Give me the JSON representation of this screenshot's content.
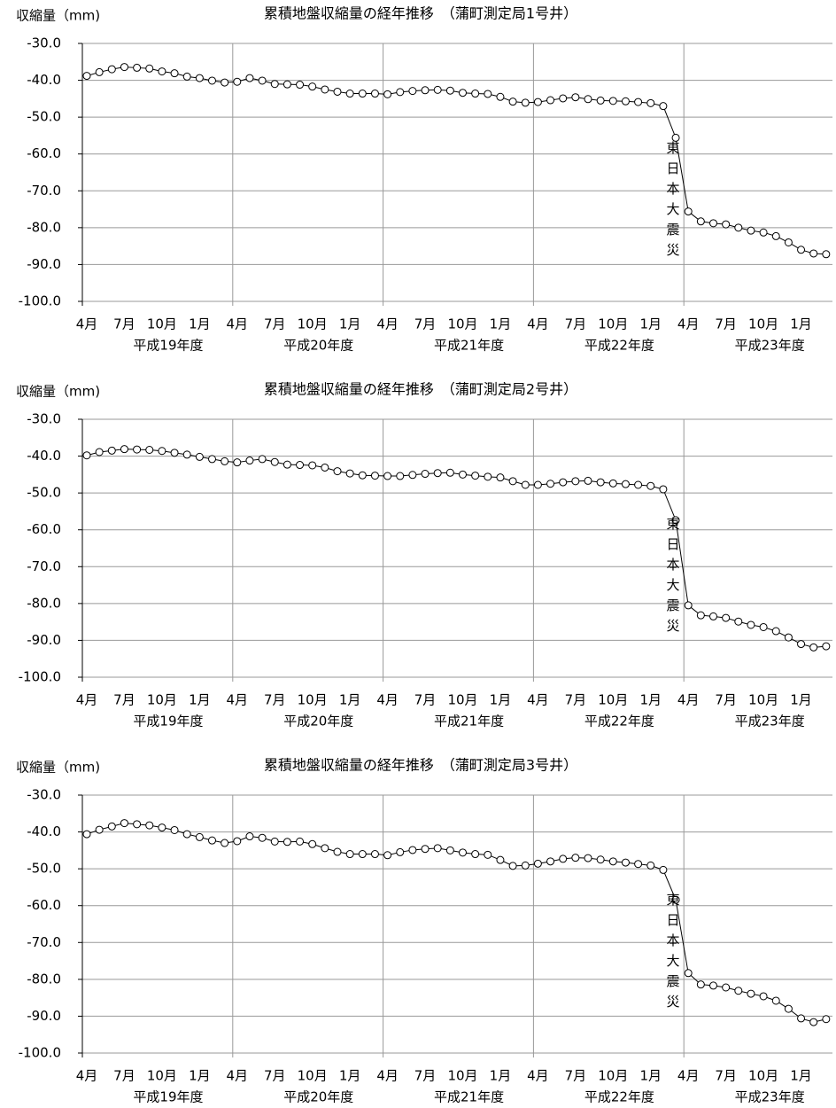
{
  "chart_data": [
    {
      "type": "line",
      "title": "累積地盤収縮量の経年推移　（蒲町測定局1号井）",
      "y_label": "収縮量（mm)",
      "categories": [
        "4月",
        null,
        null,
        "7月",
        null,
        null,
        "10月",
        null,
        null,
        "1月",
        null,
        null,
        "4月",
        null,
        null,
        "7月",
        null,
        null,
        "10月",
        null,
        null,
        "1月",
        null,
        null,
        "4月",
        null,
        null,
        "7月",
        null,
        null,
        "10月",
        null,
        null,
        "1月",
        null,
        null,
        "4月",
        null,
        null,
        "7月",
        null,
        null,
        "10月",
        null,
        null,
        "1月",
        null,
        null,
        "4月",
        null,
        null,
        "7月",
        null,
        null,
        "10月",
        null,
        null,
        "1月",
        null,
        null
      ],
      "year_labels": [
        "平成19年度",
        "平成20年度",
        "平成21年度",
        "平成22年度",
        "平成23年度"
      ],
      "annotation": "東日本大震災",
      "ylim": [
        -100,
        -30
      ],
      "yticks": [
        {
          "value": -30,
          "label": "-30.0"
        },
        {
          "value": -40,
          "label": "-40.0"
        },
        {
          "value": -50,
          "label": "-50.0"
        },
        {
          "value": -60,
          "label": "-60.0"
        },
        {
          "value": -70,
          "label": "-70.0"
        },
        {
          "value": -80,
          "label": "-80.0"
        },
        {
          "value": -90,
          "label": "-90.0"
        },
        {
          "value": -100,
          "label": "-100.0"
        }
      ],
      "grid": true,
      "series": [
        {
          "color": "#000000",
          "values": [
            -38.8,
            -37.8,
            -37.0,
            -36.4,
            -36.6,
            -36.8,
            -37.6,
            -38.1,
            -39.0,
            -39.4,
            -40.1,
            -40.6,
            -40.4,
            -39.4,
            -40.1,
            -41.0,
            -41.1,
            -41.2,
            -41.7,
            -42.5,
            -43.1,
            -43.6,
            -43.6,
            -43.6,
            -43.8,
            -43.2,
            -42.9,
            -42.7,
            -42.6,
            -42.8,
            -43.4,
            -43.6,
            -43.7,
            -44.5,
            -45.8,
            -46.1,
            -45.9,
            -45.4,
            -44.9,
            -44.6,
            -45.1,
            -45.5,
            -45.6,
            -45.7,
            -45.9,
            -46.2,
            -47.0,
            -55.6,
            -75.6,
            -78.3,
            -78.8,
            -79.1,
            -80.0,
            -80.8,
            -81.3,
            -82.3,
            -84.0,
            -86.0,
            -87.0,
            -87.2
          ]
        }
      ]
    },
    {
      "type": "line",
      "title": "累積地盤収縮量の経年推移　（蒲町測定局2号井）",
      "y_label": "収縮量（mm)",
      "categories": [
        "4月",
        null,
        null,
        "7月",
        null,
        null,
        "10月",
        null,
        null,
        "1月",
        null,
        null,
        "4月",
        null,
        null,
        "7月",
        null,
        null,
        "10月",
        null,
        null,
        "1月",
        null,
        null,
        "4月",
        null,
        null,
        "7月",
        null,
        null,
        "10月",
        null,
        null,
        "1月",
        null,
        null,
        "4月",
        null,
        null,
        "7月",
        null,
        null,
        "10月",
        null,
        null,
        "1月",
        null,
        null,
        "4月",
        null,
        null,
        "7月",
        null,
        null,
        "10月",
        null,
        null,
        "1月",
        null,
        null
      ],
      "year_labels": [
        "平成19年度",
        "平成20年度",
        "平成21年度",
        "平成22年度",
        "平成23年度"
      ],
      "annotation": "東日本大震災",
      "ylim": [
        -100,
        -30
      ],
      "yticks": [
        {
          "value": -30,
          "label": "-30.0"
        },
        {
          "value": -40,
          "label": "-40.0"
        },
        {
          "value": -50,
          "label": "-50.0"
        },
        {
          "value": -60,
          "label": "-60.0"
        },
        {
          "value": -70,
          "label": "-70.0"
        },
        {
          "value": -80,
          "label": "-80.0"
        },
        {
          "value": -90,
          "label": "-90.0"
        },
        {
          "value": -100,
          "label": "-100.0"
        }
      ],
      "grid": true,
      "series": [
        {
          "color": "#000000",
          "values": [
            -39.8,
            -38.9,
            -38.5,
            -38.1,
            -38.2,
            -38.3,
            -38.6,
            -39.1,
            -39.6,
            -40.2,
            -40.8,
            -41.4,
            -41.7,
            -41.2,
            -40.8,
            -41.6,
            -42.3,
            -42.4,
            -42.5,
            -43.1,
            -44.1,
            -44.7,
            -45.2,
            -45.3,
            -45.4,
            -45.4,
            -45.1,
            -44.8,
            -44.6,
            -44.5,
            -45.0,
            -45.3,
            -45.6,
            -45.8,
            -46.8,
            -47.8,
            -47.8,
            -47.5,
            -47.1,
            -46.8,
            -46.7,
            -47.1,
            -47.4,
            -47.6,
            -47.8,
            -48.1,
            -49.0,
            -57.4,
            -80.5,
            -83.2,
            -83.5,
            -83.9,
            -84.9,
            -85.8,
            -86.4,
            -87.5,
            -89.2,
            -91.0,
            -91.9,
            -91.6
          ]
        }
      ]
    },
    {
      "type": "line",
      "title": "累積地盤収縮量の経年推移　（蒲町測定局3号井）",
      "y_label": "収縮量（mm)",
      "categories": [
        "4月",
        null,
        null,
        "7月",
        null,
        null,
        "10月",
        null,
        null,
        "1月",
        null,
        null,
        "4月",
        null,
        null,
        "7月",
        null,
        null,
        "10月",
        null,
        null,
        "1月",
        null,
        null,
        "4月",
        null,
        null,
        "7月",
        null,
        null,
        "10月",
        null,
        null,
        "1月",
        null,
        null,
        "4月",
        null,
        null,
        "7月",
        null,
        null,
        "10月",
        null,
        null,
        "1月",
        null,
        null,
        "4月",
        null,
        null,
        "7月",
        null,
        null,
        "10月",
        null,
        null,
        "1月",
        null,
        null
      ],
      "year_labels": [
        "平成19年度",
        "平成20年度",
        "平成21年度",
        "平成22年度",
        "平成23年度"
      ],
      "annotation": "東日本大震災",
      "ylim": [
        -100,
        -30
      ],
      "yticks": [
        {
          "value": -30,
          "label": "-30.0"
        },
        {
          "value": -40,
          "label": "-40.0"
        },
        {
          "value": -50,
          "label": "-50.0"
        },
        {
          "value": -60,
          "label": "-60.0"
        },
        {
          "value": -70,
          "label": "-70.0"
        },
        {
          "value": -80,
          "label": "-80.0"
        },
        {
          "value": -90,
          "label": "-90.0"
        },
        {
          "value": -100,
          "label": "-100.0"
        }
      ],
      "grid": true,
      "series": [
        {
          "color": "#000000",
          "values": [
            -40.6,
            -39.4,
            -38.5,
            -37.6,
            -37.9,
            -38.2,
            -38.8,
            -39.5,
            -40.6,
            -41.4,
            -42.3,
            -43.0,
            -42.5,
            -41.2,
            -41.6,
            -42.6,
            -42.7,
            -42.6,
            -43.3,
            -44.4,
            -45.4,
            -46.0,
            -46.0,
            -46.0,
            -46.3,
            -45.5,
            -44.9,
            -44.6,
            -44.4,
            -45.0,
            -45.6,
            -46.0,
            -46.2,
            -47.6,
            -49.2,
            -49.1,
            -48.6,
            -48.0,
            -47.3,
            -47.0,
            -47.1,
            -47.5,
            -48.0,
            -48.3,
            -48.7,
            -49.1,
            -50.3,
            -58.4,
            -78.3,
            -81.4,
            -81.7,
            -82.2,
            -83.1,
            -83.9,
            -84.6,
            -85.8,
            -88.0,
            -90.6,
            -91.6,
            -90.8
          ]
        }
      ]
    }
  ]
}
